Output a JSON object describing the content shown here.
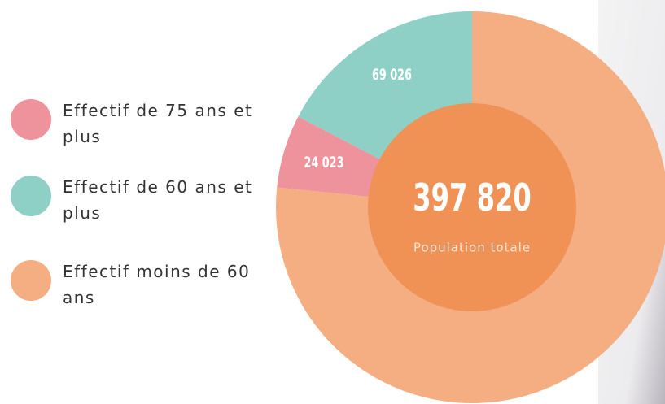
{
  "chart_data": {
    "type": "donut",
    "categories": [
      "Effectif de 75 ans et plus",
      "Effectif de 60 ans et plus",
      "Effectif moins de 60 ans"
    ],
    "values": [
      24023,
      69026,
      304771
    ],
    "value_labels": [
      "24 023",
      "69 026",
      null
    ],
    "colors": [
      "#ee929b",
      "#8ecfc6",
      "#f5ad82"
    ],
    "center_label": {
      "value": 397820,
      "label": "397 820"
    },
    "center_caption": "Population totale",
    "center_color": "#f09255"
  }
}
